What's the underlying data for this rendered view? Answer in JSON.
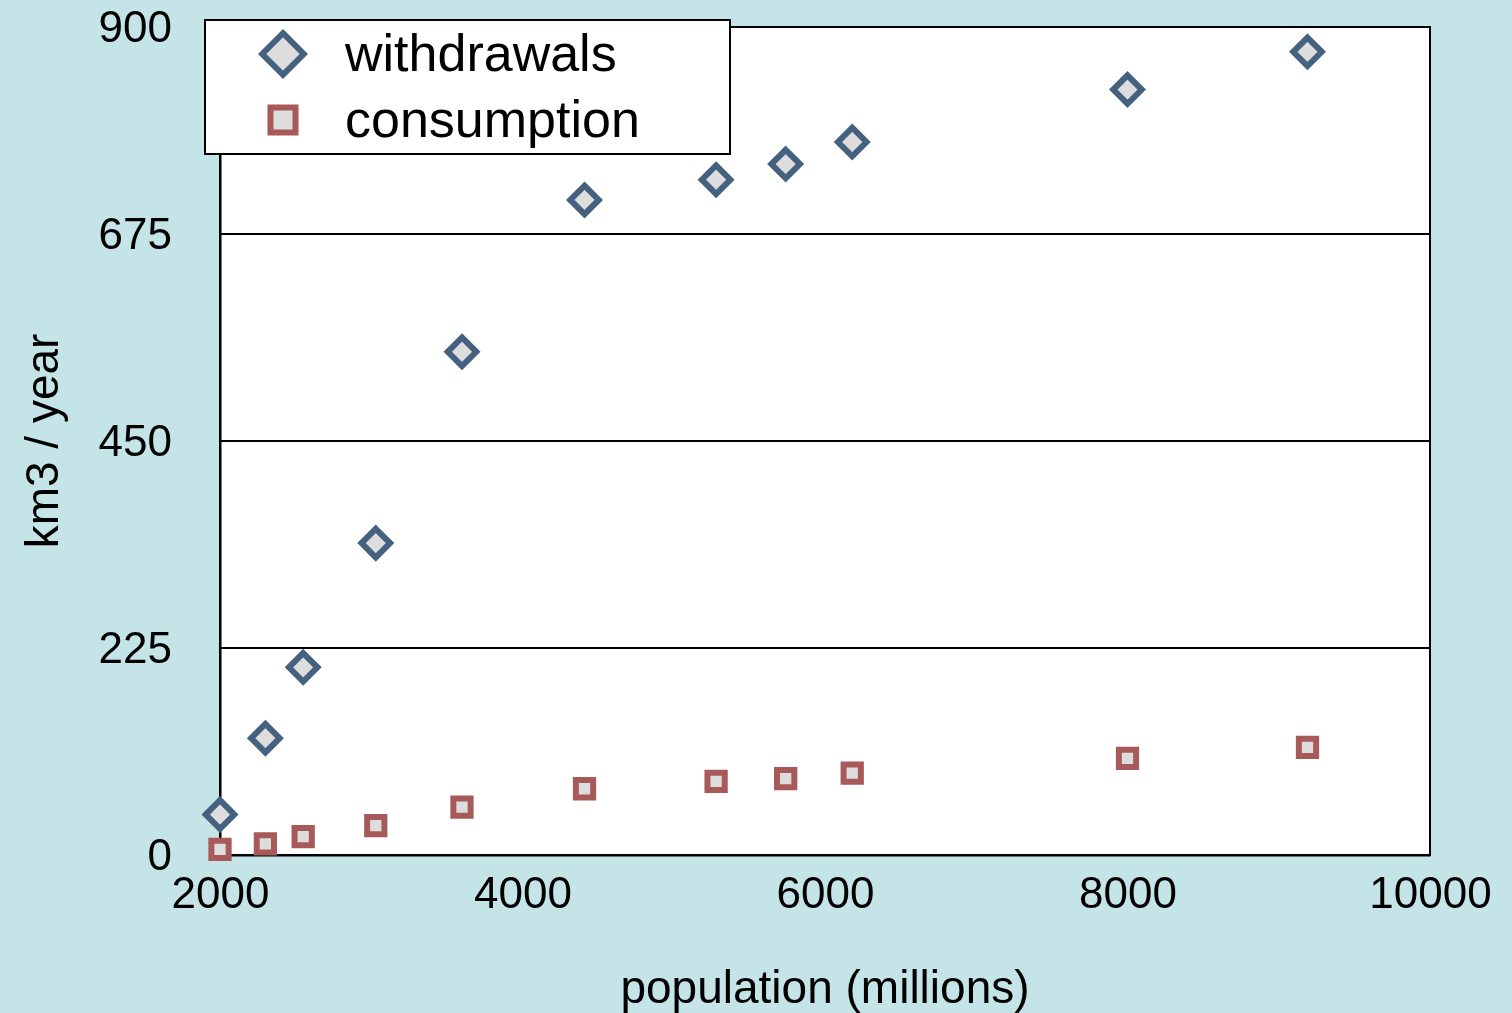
{
  "chart_data": {
    "type": "scatter",
    "xlabel": "population (millions)",
    "ylabel": "km3 / year",
    "x": [
      2000,
      2300,
      2550,
      3030,
      3600,
      4410,
      5280,
      5740,
      6180,
      8000,
      9190
    ],
    "series": [
      {
        "name": "withdrawals",
        "color": "#44627f",
        "marker": "diamond",
        "values": [
          44,
          127,
          204,
          339,
          547,
          712,
          734,
          751,
          775,
          832,
          873
        ]
      },
      {
        "name": "consumption",
        "color": "#a85a5a",
        "marker": "square",
        "values": [
          6,
          12,
          20,
          32,
          52,
          72,
          80,
          83,
          89,
          105,
          117
        ]
      }
    ],
    "xlim": [
      2000,
      10000
    ],
    "xticks": [
      2000,
      4000,
      6000,
      8000,
      10000
    ],
    "ylim": [
      0,
      900
    ],
    "yticks": [
      0,
      225,
      450,
      675,
      900
    ],
    "grid": "y",
    "legend": "top left"
  }
}
